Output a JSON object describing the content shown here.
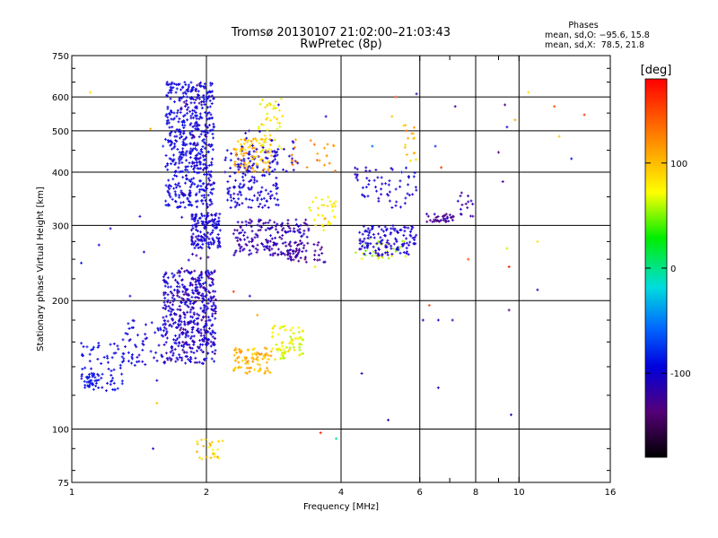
{
  "chart_data": {
    "type": "scatter",
    "title": "Tromsø 20130107 21:02:00–21:03:43",
    "subtitle": "RwPretec (8p)",
    "stats": {
      "heading": "Phases",
      "line1": "mean, sd,O: −95.6, 15.8",
      "line2": "mean, sd,X:  78.5, 21.8"
    },
    "xlabel": "Frequency [MHz]",
    "ylabel": "Stationary phase Virtual Height [km]",
    "x_scale": "log",
    "y_scale": "log",
    "xlim": [
      1,
      16
    ],
    "ylim": [
      75,
      750
    ],
    "x_ticks": [
      1,
      2,
      4,
      6,
      8,
      10,
      16
    ],
    "y_ticks": [
      75,
      100,
      200,
      300,
      400,
      500,
      600,
      750
    ],
    "grid": true,
    "colorbar": {
      "label": "[deg]",
      "range": [
        -180,
        180
      ],
      "ticks": [
        100,
        0,
        -100
      ]
    },
    "clusters": [
      {
        "f": [
          1.62,
          2.08
        ],
        "h": [
          330,
          650
        ],
        "phase": -105,
        "n": 520
      },
      {
        "f": [
          1.75,
          2.05
        ],
        "h": [
          160,
          650
        ],
        "phase": -130,
        "n": 80
      },
      {
        "f": [
          2.2,
          2.9
        ],
        "h": [
          330,
          450
        ],
        "phase": -112,
        "n": 160
      },
      {
        "f": [
          1.85,
          2.15
        ],
        "h": [
          265,
          320
        ],
        "phase": -112,
        "n": 140
      },
      {
        "f": [
          2.3,
          3.4
        ],
        "h": [
          255,
          310
        ],
        "phase": -130,
        "n": 180
      },
      {
        "f": [
          3.0,
          3.7
        ],
        "h": [
          245,
          275
        ],
        "phase": -140,
        "n": 45
      },
      {
        "f": [
          1.6,
          2.1
        ],
        "h": [
          142,
          235
        ],
        "phase": -115,
        "n": 380
      },
      {
        "f": [
          1.6,
          2.1
        ],
        "h": [
          142,
          235
        ],
        "phase": -140,
        "n": 80
      },
      {
        "f": [
          1.3,
          1.6
        ],
        "h": [
          140,
          180
        ],
        "phase": -108,
        "n": 55
      },
      {
        "f": [
          1.05,
          1.3
        ],
        "h": [
          123,
          160
        ],
        "phase": -100,
        "n": 70
      },
      {
        "f": [
          1.05,
          1.15
        ],
        "h": [
          125,
          135
        ],
        "phase": -95,
        "n": 30
      },
      {
        "f": [
          2.3,
          2.8
        ],
        "h": [
          400,
          480
        ],
        "phase": 115,
        "n": 90
      },
      {
        "f": [
          2.6,
          3.0
        ],
        "h": [
          450,
          600
        ],
        "phase": 95,
        "n": 40
      },
      {
        "f": [
          2.3,
          2.8
        ],
        "h": [
          135,
          155
        ],
        "phase": 115,
        "n": 85
      },
      {
        "f": [
          2.8,
          3.3
        ],
        "h": [
          145,
          175
        ],
        "phase": 90,
        "n": 70
      },
      {
        "f": [
          1.9,
          2.2
        ],
        "h": [
          85,
          95
        ],
        "phase": 105,
        "n": 25
      },
      {
        "f": [
          2.4,
          3.3
        ],
        "h": [
          390,
          500
        ],
        "phase": -120,
        "n": 30
      },
      {
        "f": [
          3.4,
          3.9
        ],
        "h": [
          290,
          350
        ],
        "phase": 100,
        "n": 30
      },
      {
        "f": [
          4.2,
          5.6
        ],
        "h": [
          250,
          280
        ],
        "phase": 80,
        "n": 30
      },
      {
        "f": [
          4.4,
          5.9
        ],
        "h": [
          255,
          300
        ],
        "phase": -115,
        "n": 130
      },
      {
        "f": [
          4.3,
          5.9
        ],
        "h": [
          330,
          410
        ],
        "phase": -115,
        "n": 60
      },
      {
        "f": [
          5.5,
          5.9
        ],
        "h": [
          420,
          520
        ],
        "phase": 110,
        "n": 15
      },
      {
        "f": [
          6.2,
          7.2
        ],
        "h": [
          305,
          320
        ],
        "phase": -140,
        "n": 35
      },
      {
        "f": [
          7.3,
          7.9
        ],
        "h": [
          315,
          360
        ],
        "phase": -130,
        "n": 15
      },
      {
        "f": [
          3.1,
          3.9
        ],
        "h": [
          400,
          480
        ],
        "phase": 130,
        "n": 20
      }
    ],
    "scattered_points": [
      [
        1.1,
        615,
        100
      ],
      [
        1.05,
        245,
        -100
      ],
      [
        1.15,
        270,
        -105
      ],
      [
        1.22,
        295,
        -110
      ],
      [
        1.45,
        260,
        -115
      ],
      [
        1.52,
        90,
        -110
      ],
      [
        1.55,
        115,
        110
      ],
      [
        1.55,
        130,
        -110
      ],
      [
        1.35,
        205,
        -100
      ],
      [
        1.42,
        315,
        -110
      ],
      [
        1.5,
        505,
        120
      ],
      [
        1.6,
        460,
        -80
      ],
      [
        2.3,
        210,
        160
      ],
      [
        2.5,
        205,
        -100
      ],
      [
        2.6,
        185,
        120
      ],
      [
        2.9,
        575,
        -120
      ],
      [
        3.2,
        420,
        -120
      ],
      [
        3.4,
        330,
        80
      ],
      [
        3.5,
        240,
        100
      ],
      [
        3.7,
        540,
        -125
      ],
      [
        3.6,
        98,
        170
      ],
      [
        3.9,
        95,
        20
      ],
      [
        4.45,
        135,
        -130
      ],
      [
        4.7,
        460,
        -50
      ],
      [
        5.1,
        105,
        -130
      ],
      [
        5.2,
        540,
        110
      ],
      [
        5.3,
        600,
        150
      ],
      [
        5.6,
        500,
        140
      ],
      [
        5.9,
        610,
        -130
      ],
      [
        6.1,
        180,
        -120
      ],
      [
        6.3,
        195,
        150
      ],
      [
        6.5,
        460,
        -80
      ],
      [
        6.6,
        180,
        -120
      ],
      [
        6.6,
        125,
        -130
      ],
      [
        6.7,
        410,
        160
      ],
      [
        7.1,
        180,
        -140
      ],
      [
        7.2,
        570,
        -140
      ],
      [
        7.7,
        250,
        150
      ],
      [
        9.0,
        445,
        -150
      ],
      [
        9.2,
        380,
        -140
      ],
      [
        9.3,
        575,
        -150
      ],
      [
        9.4,
        265,
        80
      ],
      [
        9.5,
        240,
        170
      ],
      [
        9.5,
        190,
        -150
      ],
      [
        9.6,
        108,
        -130
      ],
      [
        9.8,
        530,
        120
      ],
      [
        10.5,
        615,
        100
      ],
      [
        11.0,
        275,
        100
      ],
      [
        11.0,
        212,
        -120
      ],
      [
        12.0,
        570,
        150
      ],
      [
        12.3,
        485,
        110
      ],
      [
        13.1,
        430,
        -100
      ],
      [
        14.0,
        545,
        160
      ],
      [
        9.4,
        510,
        -110
      ]
    ]
  }
}
